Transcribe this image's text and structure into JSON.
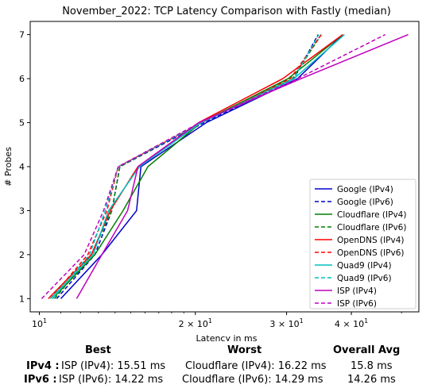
{
  "chart_data": {
    "type": "line",
    "title": "November_2022: TCP Latency Comparison with Fastly (median)",
    "xlabel": "Latency in ms",
    "ylabel": "# Probes",
    "xscale": "log",
    "xlim": [
      9.6,
      54
    ],
    "ylim": [
      0.7,
      7.3
    ],
    "x_ticks": [
      {
        "value": 10,
        "base": "10",
        "exp": "1"
      },
      {
        "value": 20,
        "base": "2 × 10",
        "exp": "1"
      },
      {
        "value": 30,
        "base": "3 × 10",
        "exp": "1"
      },
      {
        "value": 40,
        "base": "4 × 10",
        "exp": "1"
      }
    ],
    "y_ticks": [
      1,
      2,
      3,
      4,
      5,
      6,
      7
    ],
    "grid": false,
    "legend_position": "lower-right",
    "series": [
      {
        "name": "Google (IPv4)",
        "color": "#0000cc",
        "dash": false,
        "x": [
          11.0,
          13.2,
          15.4,
          15.7,
          21.0,
          31.5,
          38.5
        ],
        "y": [
          1,
          2,
          3,
          4,
          5,
          6,
          7
        ]
      },
      {
        "name": "Google (IPv6)",
        "color": "#0000cc",
        "dash": true,
        "x": [
          10.8,
          12.8,
          13.8,
          14.3,
          20.8,
          31.0,
          34.5
        ],
        "y": [
          1,
          2,
          3,
          4,
          5,
          6,
          7
        ]
      },
      {
        "name": "Cloudflare (IPv4)",
        "color": "#008000",
        "dash": false,
        "x": [
          10.6,
          12.8,
          14.5,
          16.2,
          20.5,
          30.2,
          38.5
        ],
        "y": [
          1,
          2,
          3,
          4,
          5,
          6,
          7
        ]
      },
      {
        "name": "Cloudflare (IPv6)",
        "color": "#008000",
        "dash": true,
        "x": [
          10.7,
          12.6,
          13.8,
          14.3,
          20.5,
          30.8,
          35.0
        ],
        "y": [
          1,
          2,
          3,
          4,
          5,
          6,
          7
        ]
      },
      {
        "name": "OpenDNS (IPv4)",
        "color": "#ff0000",
        "dash": false,
        "x": [
          10.4,
          12.6,
          13.7,
          15.5,
          20.3,
          29.5,
          38.5
        ],
        "y": [
          1,
          2,
          3,
          4,
          5,
          6,
          7
        ]
      },
      {
        "name": "OpenDNS (IPv6)",
        "color": "#ff0000",
        "dash": true,
        "x": [
          10.5,
          12.4,
          13.5,
          14.2,
          20.6,
          30.5,
          35.0
        ],
        "y": [
          1,
          2,
          3,
          4,
          5,
          6,
          7
        ]
      },
      {
        "name": "Quad9 (IPv4)",
        "color": "#00bfbf",
        "dash": false,
        "x": [
          10.5,
          12.7,
          13.6,
          15.6,
          20.5,
          31.0,
          38.8
        ],
        "y": [
          1,
          2,
          3,
          4,
          5,
          6,
          7
        ]
      },
      {
        "name": "Quad9 (IPv6)",
        "color": "#00bfbf",
        "dash": true,
        "x": [
          10.6,
          12.5,
          13.4,
          14.2,
          20.6,
          31.0,
          34.6
        ],
        "y": [
          1,
          2,
          3,
          4,
          5,
          6,
          7
        ]
      },
      {
        "name": "ISP (IPv4)",
        "color": "#bf00bf",
        "dash": false,
        "x": [
          11.8,
          13.2,
          14.8,
          15.5,
          20.3,
          32.0,
          51.5
        ],
        "y": [
          1,
          2,
          3,
          4,
          5,
          6,
          7
        ]
      },
      {
        "name": "ISP (IPv6)",
        "color": "#bf00bf",
        "dash": true,
        "x": [
          10.1,
          12.2,
          13.3,
          14.2,
          20.4,
          31.5,
          46.5
        ],
        "y": [
          1,
          2,
          3,
          4,
          5,
          6,
          7
        ]
      }
    ]
  },
  "summary": {
    "headers": {
      "best": "Best",
      "worst": "Worst",
      "avg": "Overall Avg"
    },
    "rows": [
      {
        "label": "IPv4 :",
        "best": "ISP (IPv4): 15.51 ms",
        "worst": "Cloudflare (IPv4): 16.22 ms",
        "avg": "15.8 ms"
      },
      {
        "label": "IPv6 :",
        "best": "ISP (IPv6): 14.22 ms",
        "worst": "Cloudflare (IPv6): 14.29 ms",
        "avg": "14.26 ms"
      }
    ]
  }
}
